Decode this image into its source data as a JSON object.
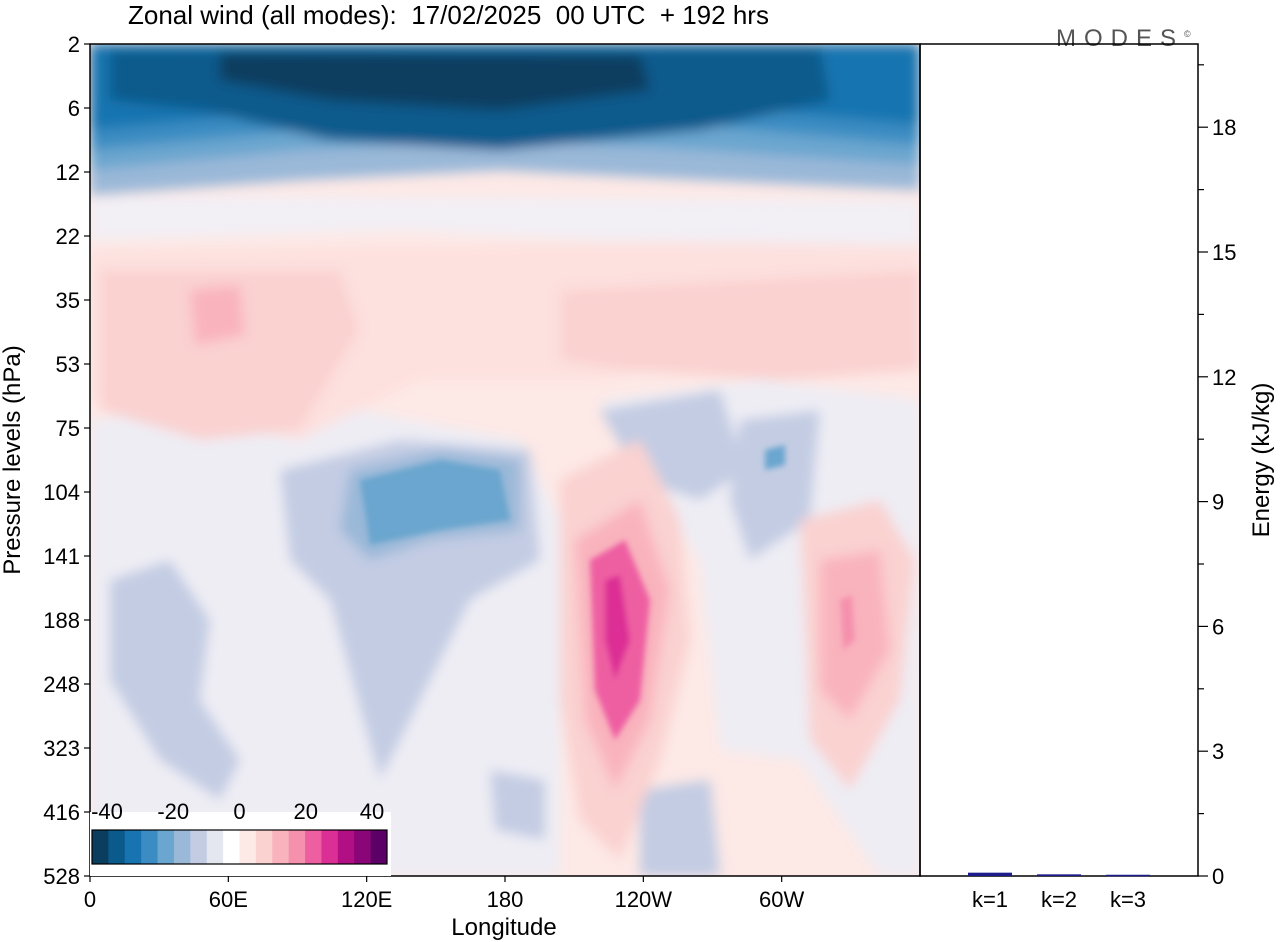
{
  "title": "Zonal wind (all modes):  17/02/2025  00 UTC  + 192 hrs",
  "logo": "MODES",
  "logo_mark": "©",
  "colors": {
    "scale": [
      "#0a3d5e",
      "#0b5a8c",
      "#1874b0",
      "#3a8cc2",
      "#6aa6cf",
      "#9ab8d8",
      "#c3cce3",
      "#e4e6f0",
      "#ffffff",
      "#fde9e6",
      "#fad2d0",
      "#f9b3bd",
      "#f590ad",
      "#ee5fa2",
      "#dc2f95",
      "#b30f85",
      "#8a0577",
      "#5c0068"
    ],
    "frame": "#000000",
    "energy_bar": "#1c1c8c"
  },
  "chart_data": [
    {
      "type": "heatmap",
      "title": "Zonal wind (all modes):  17/02/2025  00 UTC  + 192 hrs",
      "xlabel": "Longitude",
      "ylabel": "Pressure levels (hPa)",
      "x_ticks": [
        "0",
        "60E",
        "120E",
        "180",
        "120W",
        "60W"
      ],
      "x_tick_values": [
        0,
        60,
        120,
        180,
        240,
        300
      ],
      "xlim": [
        0,
        360
      ],
      "y_levels": [
        "2",
        "6",
        "12",
        "22",
        "35",
        "53",
        "75",
        "104",
        "141",
        "188",
        "248",
        "323",
        "416",
        "528"
      ],
      "colorbar": {
        "tick_labels": [
          "-40",
          "-20",
          "0",
          "20",
          "40"
        ],
        "range": [
          -40,
          40
        ],
        "step": 5
      },
      "features": [
        {
          "name": "upper stratospheric easterlies",
          "level": "2-6",
          "value": -40,
          "lon": [
            10,
            250
          ]
        },
        {
          "name": "subtropical jet core",
          "level": "141-248",
          "lon": [
            225,
            235
          ],
          "value": 30
        },
        {
          "name": "secondary westerly maximum",
          "level": "141-248",
          "lon": [
            322,
            330
          ],
          "value": 20
        },
        {
          "name": "easterly region",
          "level": "104",
          "lon": [
            120,
            185
          ],
          "value": -15
        }
      ]
    },
    {
      "type": "bar",
      "ylabel": "Energy (kJ/kg)",
      "categories": [
        "k=1",
        "k=2",
        "k=3"
      ],
      "values": [
        0.08,
        0.04,
        0.03
      ],
      "ylim": [
        0,
        20
      ],
      "y_ticks": [
        0,
        3,
        6,
        9,
        12,
        15,
        18
      ]
    }
  ]
}
